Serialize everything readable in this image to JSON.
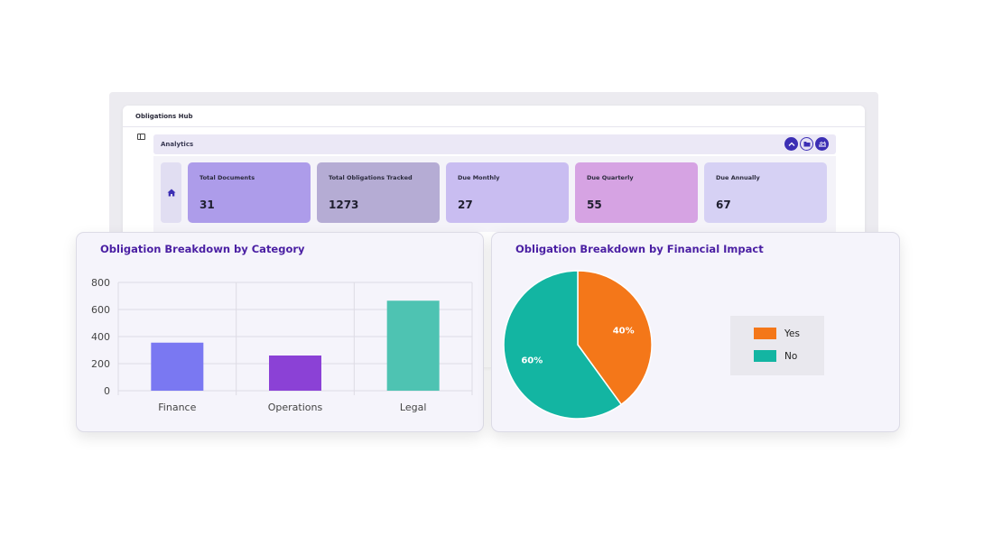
{
  "app": {
    "title": "Obligations Hub",
    "section_title": "Analytics",
    "top_icons": [
      "chevron-up-icon",
      "folder-icon",
      "chart-icon"
    ]
  },
  "stats": [
    {
      "label": "Total Documents",
      "value": "31",
      "color": "#ad9cea"
    },
    {
      "label": "Total Obligations Tracked",
      "value": "1273",
      "color": "#b5acd4"
    },
    {
      "label": "Due Monthly",
      "value": "27",
      "color": "#c9bdf1"
    },
    {
      "label": "Due Quarterly",
      "value": "55",
      "color": "#d6a3e3"
    },
    {
      "label": "Due Annually",
      "value": "67",
      "color": "#d6d1f4"
    }
  ],
  "panels": {
    "category_title": "Obligation Breakdown by Category",
    "impact_title": "Obligation Breakdown by Financial Impact"
  },
  "chart_data": [
    {
      "type": "bar",
      "title": "Obligation Breakdown by Category",
      "categories": [
        "Finance",
        "Operations",
        "Legal"
      ],
      "values": [
        355,
        260,
        665
      ],
      "colors": [
        "#7a78f2",
        "#8b41d6",
        "#4ec3b2"
      ],
      "ylim": [
        0,
        800
      ],
      "yticks": [
        0,
        200,
        400,
        600,
        800
      ],
      "grid": true
    },
    {
      "type": "pie",
      "title": "Obligation Breakdown by Financial Impact",
      "slices": [
        {
          "label": "Yes",
          "value": 40,
          "display": "40%",
          "color": "#f47719"
        },
        {
          "label": "No",
          "value": 60,
          "display": "60%",
          "color": "#13b5a2"
        }
      ],
      "legend": "right"
    }
  ]
}
